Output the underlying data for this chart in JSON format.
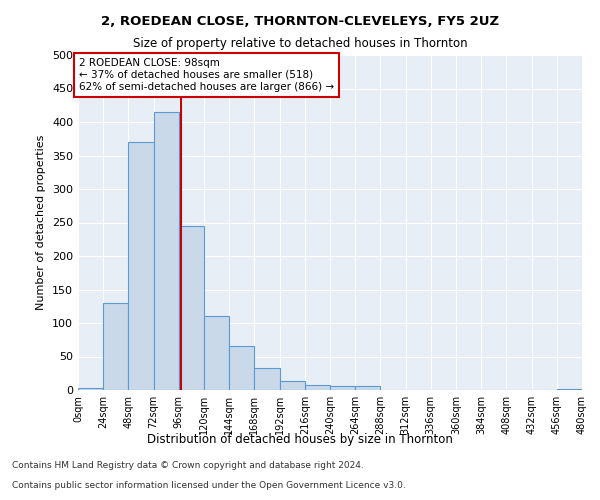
{
  "title1": "2, ROEDEAN CLOSE, THORNTON-CLEVELEYS, FY5 2UZ",
  "title2": "Size of property relative to detached houses in Thornton",
  "xlabel": "Distribution of detached houses by size in Thornton",
  "ylabel": "Number of detached properties",
  "bar_values": [
    3,
    130,
    370,
    415,
    245,
    110,
    65,
    33,
    14,
    8,
    6,
    6,
    0,
    0,
    0,
    0,
    0,
    0,
    0,
    2
  ],
  "bin_edges": [
    0,
    24,
    48,
    72,
    96,
    120,
    144,
    168,
    192,
    216,
    240,
    264,
    288,
    312,
    336,
    360,
    384,
    408,
    432,
    456,
    480
  ],
  "tick_labels": [
    "0sqm",
    "24sqm",
    "48sqm",
    "72sqm",
    "96sqm",
    "120sqm",
    "144sqm",
    "168sqm",
    "192sqm",
    "216sqm",
    "240sqm",
    "264sqm",
    "288sqm",
    "312sqm",
    "336sqm",
    "360sqm",
    "384sqm",
    "408sqm",
    "432sqm",
    "456sqm",
    "480sqm"
  ],
  "bar_color": "#c9d9ea",
  "bar_edge_color": "#5b9bd5",
  "vline_x": 98,
  "vline_color": "#cc0000",
  "annotation_line1": "2 ROEDEAN CLOSE: 98sqm",
  "annotation_line2": "← 37% of detached houses are smaller (518)",
  "annotation_line3": "62% of semi-detached houses are larger (866) →",
  "annotation_box_color": "#ffffff",
  "annotation_box_edge": "#cc0000",
  "ylim": [
    0,
    500
  ],
  "yticks": [
    0,
    50,
    100,
    150,
    200,
    250,
    300,
    350,
    400,
    450,
    500
  ],
  "footnote1": "Contains HM Land Registry data © Crown copyright and database right 2024.",
  "footnote2": "Contains public sector information licensed under the Open Government Licence v3.0.",
  "bg_color": "#e8eef5",
  "fig_width": 6.0,
  "fig_height": 5.0,
  "dpi": 100
}
